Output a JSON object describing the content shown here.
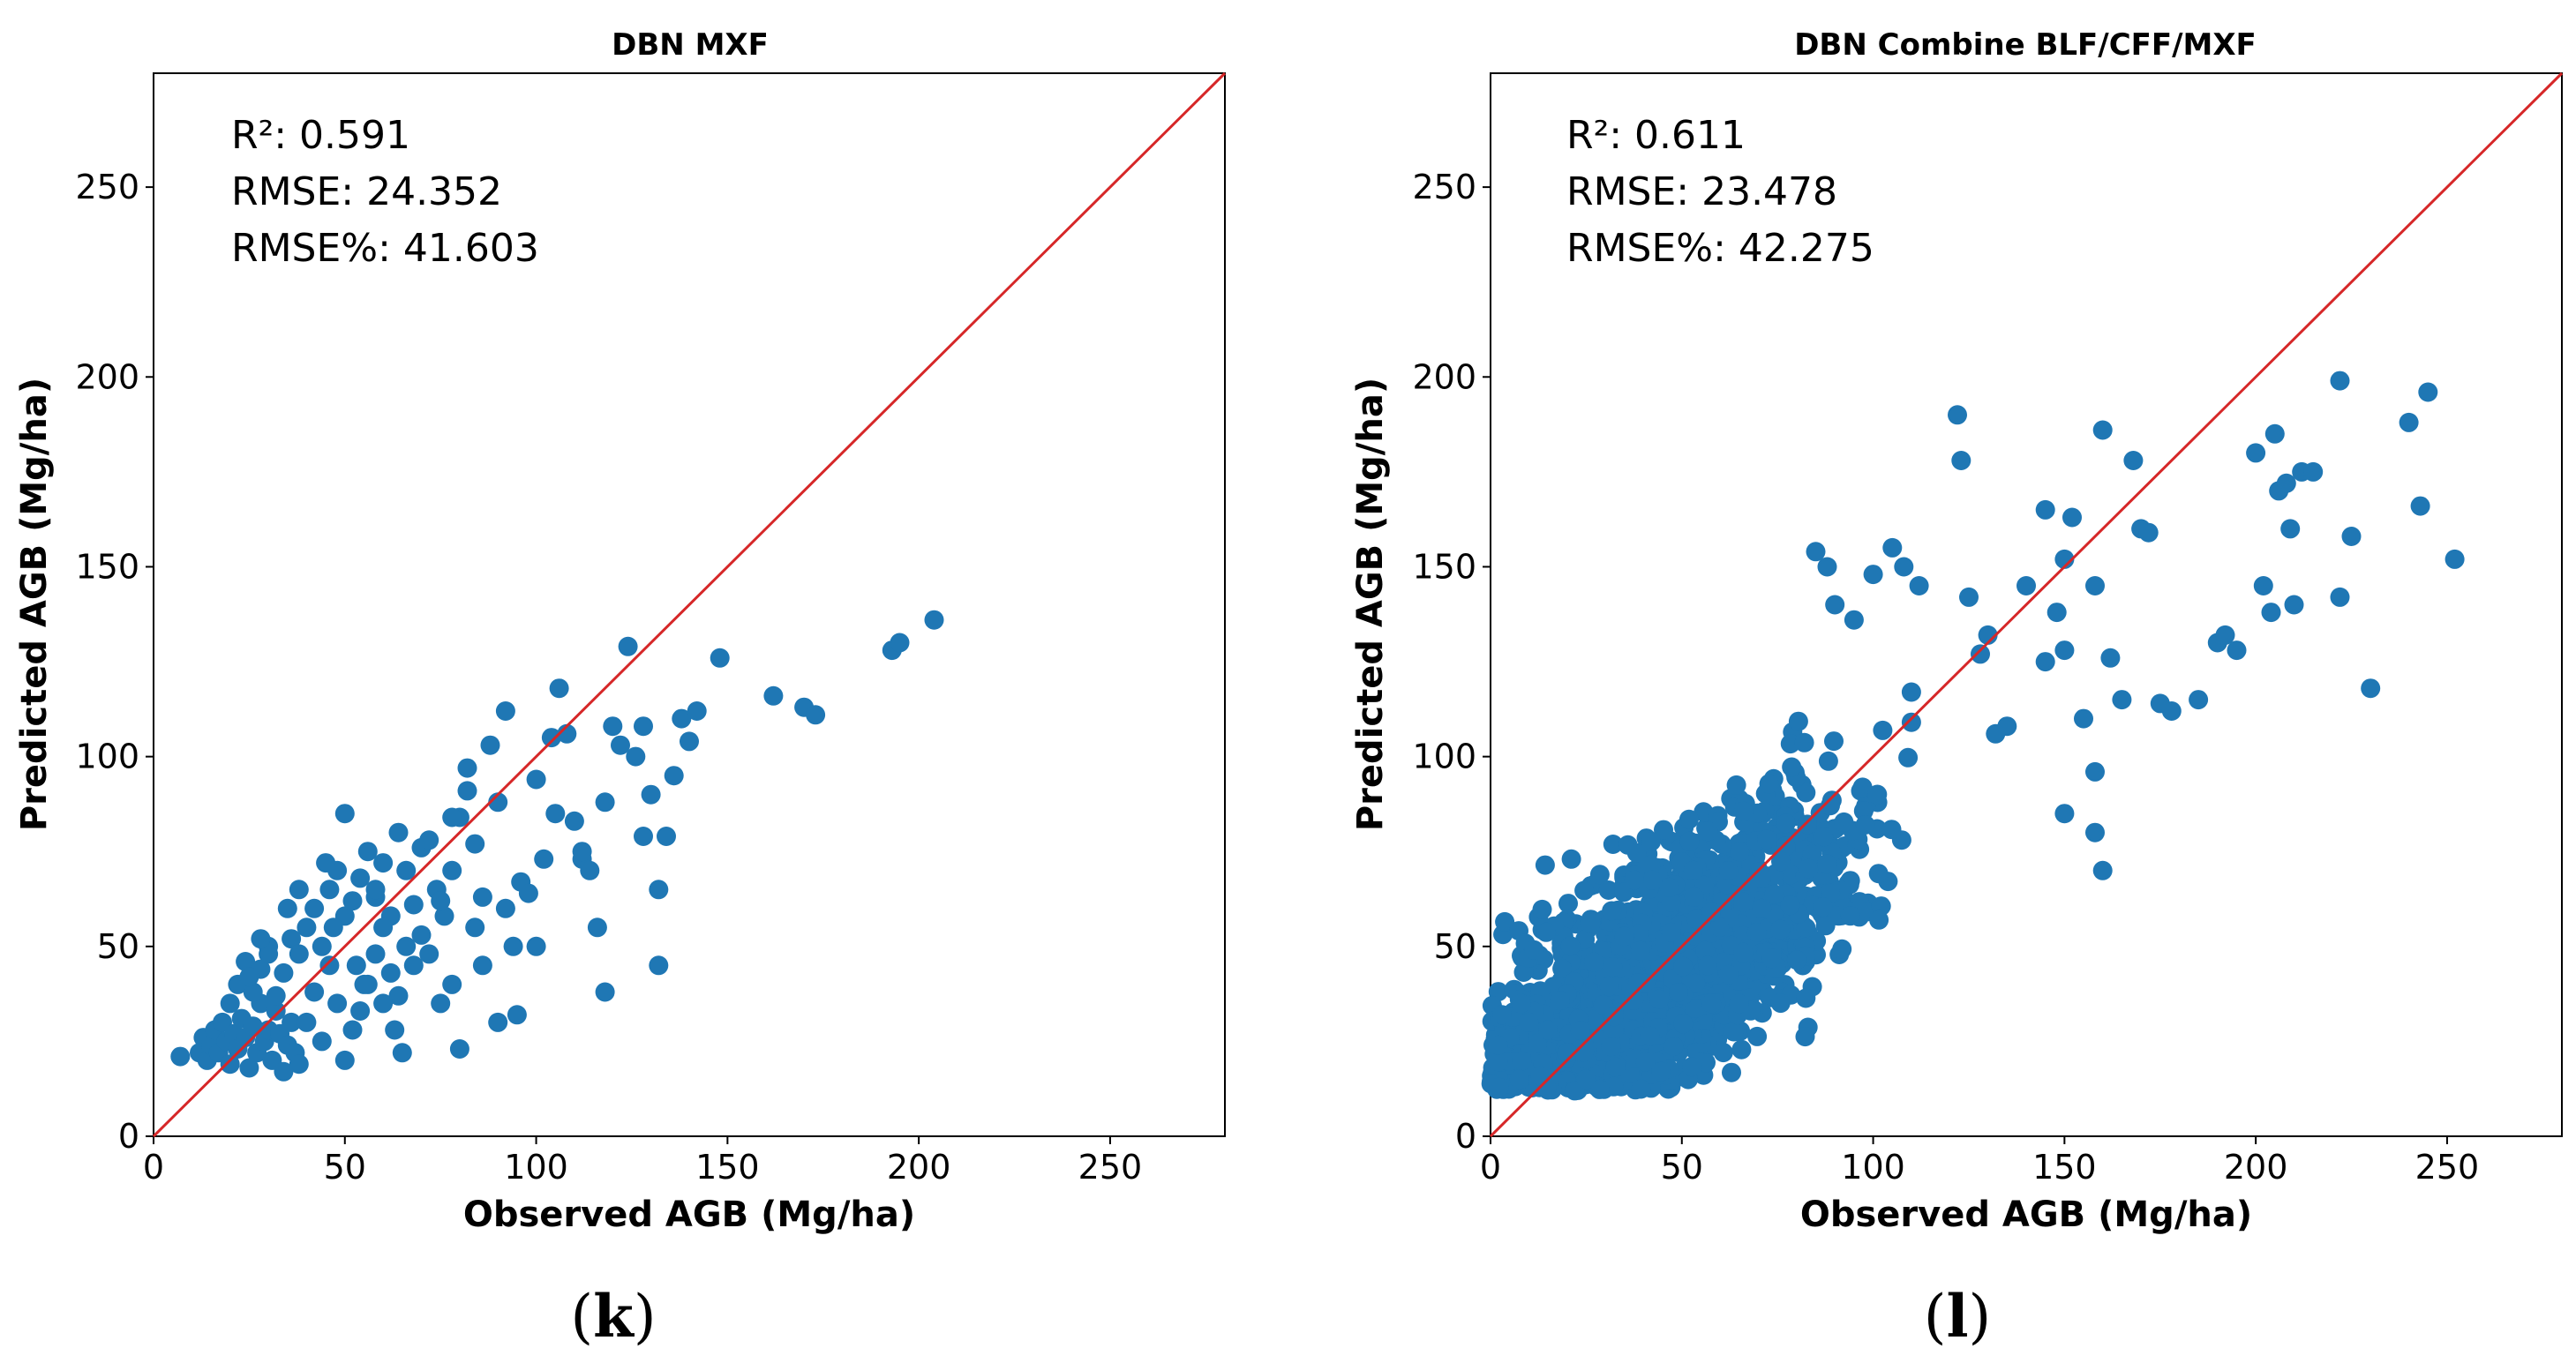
{
  "chart_data": [
    {
      "type": "scatter",
      "title": "DBN  MXF",
      "xlabel": "Observed AGB (Mg/ha)",
      "ylabel": "Predicted AGB (Mg/ha)",
      "xlim": [
        0,
        280
      ],
      "ylim": [
        0,
        280
      ],
      "xticks": [
        "0",
        "50",
        "100",
        "150",
        "200",
        "250"
      ],
      "yticks": [
        "0",
        "50",
        "100",
        "150",
        "200",
        "250"
      ],
      "stats": {
        "r2": "R²: 0.591",
        "rmse": "RMSE: 24.352",
        "rmse_pct": "RMSE%: 41.603"
      },
      "panel_label": "k",
      "reference_line": {
        "name": "1:1",
        "color": "#d62728"
      },
      "point_color": "#1f77b4",
      "points": [
        [
          7,
          21
        ],
        [
          12,
          22
        ],
        [
          13,
          26
        ],
        [
          14,
          20
        ],
        [
          15,
          24
        ],
        [
          16,
          28
        ],
        [
          17,
          22
        ],
        [
          18,
          30
        ],
        [
          19,
          25
        ],
        [
          20,
          19
        ],
        [
          21,
          27
        ],
        [
          22,
          23
        ],
        [
          23,
          31
        ],
        [
          24,
          26
        ],
        [
          25,
          18
        ],
        [
          26,
          29
        ],
        [
          27,
          22
        ],
        [
          28,
          35
        ],
        [
          29,
          25
        ],
        [
          30,
          28
        ],
        [
          31,
          20
        ],
        [
          32,
          33
        ],
        [
          33,
          27
        ],
        [
          34,
          17
        ],
        [
          35,
          24
        ],
        [
          36,
          30
        ],
        [
          37,
          22
        ],
        [
          38,
          19
        ],
        [
          20,
          35
        ],
        [
          22,
          40
        ],
        [
          24,
          46
        ],
        [
          26,
          38
        ],
        [
          28,
          44
        ],
        [
          30,
          50
        ],
        [
          32,
          37
        ],
        [
          34,
          43
        ],
        [
          36,
          52
        ],
        [
          38,
          48
        ],
        [
          40,
          55
        ],
        [
          42,
          60
        ],
        [
          44,
          50
        ],
        [
          46,
          65
        ],
        [
          48,
          70
        ],
        [
          50,
          58
        ],
        [
          52,
          62
        ],
        [
          54,
          68
        ],
        [
          56,
          75
        ],
        [
          58,
          63
        ],
        [
          60,
          72
        ],
        [
          62,
          58
        ],
        [
          64,
          80
        ],
        [
          66,
          70
        ],
        [
          68,
          61
        ],
        [
          70,
          76
        ],
        [
          40,
          30
        ],
        [
          42,
          38
        ],
        [
          44,
          25
        ],
        [
          46,
          45
        ],
        [
          48,
          35
        ],
        [
          50,
          20
        ],
        [
          52,
          28
        ],
        [
          54,
          33
        ],
        [
          56,
          40
        ],
        [
          58,
          48
        ],
        [
          60,
          55
        ],
        [
          62,
          43
        ],
        [
          64,
          37
        ],
        [
          66,
          50
        ],
        [
          68,
          45
        ],
        [
          70,
          53
        ],
        [
          72,
          48
        ],
        [
          74,
          65
        ],
        [
          76,
          58
        ],
        [
          78,
          70
        ],
        [
          80,
          84
        ],
        [
          82,
          97
        ],
        [
          84,
          77
        ],
        [
          86,
          63
        ],
        [
          88,
          103
        ],
        [
          90,
          88
        ],
        [
          92,
          112
        ],
        [
          94,
          50
        ],
        [
          96,
          67
        ],
        [
          98,
          64
        ],
        [
          100,
          94
        ],
        [
          102,
          73
        ],
        [
          104,
          105
        ],
        [
          106,
          118
        ],
        [
          108,
          106
        ],
        [
          110,
          83
        ],
        [
          112,
          73
        ],
        [
          114,
          70
        ],
        [
          116,
          55
        ],
        [
          118,
          38
        ],
        [
          120,
          108
        ],
        [
          122,
          103
        ],
        [
          124,
          129
        ],
        [
          126,
          100
        ],
        [
          128,
          108
        ],
        [
          130,
          90
        ],
        [
          132,
          65
        ],
        [
          134,
          79
        ],
        [
          136,
          95
        ],
        [
          138,
          110
        ],
        [
          140,
          104
        ],
        [
          142,
          112
        ],
        [
          148,
          126
        ],
        [
          162,
          116
        ],
        [
          170,
          113
        ],
        [
          173,
          111
        ],
        [
          193,
          128
        ],
        [
          195,
          130
        ],
        [
          204,
          136
        ],
        [
          75,
          35
        ],
        [
          78,
          40
        ],
        [
          80,
          23
        ],
        [
          84,
          55
        ],
        [
          86,
          45
        ],
        [
          90,
          30
        ],
        [
          92,
          60
        ],
        [
          95,
          32
        ],
        [
          100,
          50
        ],
        [
          105,
          85
        ],
        [
          112,
          75
        ],
        [
          118,
          88
        ],
        [
          128,
          79
        ],
        [
          132,
          45
        ],
        [
          35,
          60
        ],
        [
          38,
          65
        ],
        [
          30,
          48
        ],
        [
          25,
          42
        ],
        [
          28,
          52
        ],
        [
          45,
          72
        ],
        [
          47,
          55
        ],
        [
          50,
          85
        ],
        [
          53,
          45
        ],
        [
          55,
          40
        ],
        [
          60,
          35
        ],
        [
          65,
          22
        ],
        [
          63,
          28
        ],
        [
          58,
          65
        ],
        [
          72,
          78
        ],
        [
          75,
          62
        ],
        [
          78,
          84
        ],
        [
          82,
          91
        ]
      ]
    },
    {
      "type": "scatter",
      "title": "DBN  Combine BLF/CFF/MXF",
      "xlabel": "Observed AGB (Mg/ha)",
      "ylabel": "Predicted AGB (Mg/ha)",
      "xlim": [
        0,
        280
      ],
      "ylim": [
        0,
        280
      ],
      "xticks": [
        "0",
        "50",
        "100",
        "150",
        "200",
        "250"
      ],
      "yticks": [
        "0",
        "50",
        "100",
        "150",
        "200",
        "250"
      ],
      "stats": {
        "r2": "R²: 0.611",
        "rmse": "RMSE: 23.478",
        "rmse_pct": "RMSE%: 42.275"
      },
      "panel_label": "l",
      "reference_line": {
        "name": "1:1",
        "color": "#d62728"
      },
      "point_color": "#1f77b4",
      "dense_cloud": {
        "count": 1800,
        "x_mean": 45,
        "x_sd": 24,
        "slope": 0.62,
        "intercept": 16,
        "noise_sd": 15
      },
      "points": [
        [
          122,
          190
        ],
        [
          123,
          178
        ],
        [
          140,
          145
        ],
        [
          145,
          165
        ],
        [
          150,
          152
        ],
        [
          152,
          163
        ],
        [
          158,
          145
        ],
        [
          160,
          186
        ],
        [
          162,
          126
        ],
        [
          165,
          115
        ],
        [
          168,
          178
        ],
        [
          170,
          160
        ],
        [
          172,
          159
        ],
        [
          175,
          114
        ],
        [
          178,
          112
        ],
        [
          185,
          115
        ],
        [
          190,
          130
        ],
        [
          192,
          132
        ],
        [
          195,
          128
        ],
        [
          200,
          180
        ],
        [
          202,
          145
        ],
        [
          204,
          138
        ],
        [
          205,
          185
        ],
        [
          206,
          170
        ],
        [
          208,
          172
        ],
        [
          209,
          160
        ],
        [
          210,
          140
        ],
        [
          212,
          175
        ],
        [
          215,
          175
        ],
        [
          222,
          199
        ],
        [
          222,
          142
        ],
        [
          225,
          158
        ],
        [
          230,
          118
        ],
        [
          240,
          188
        ],
        [
          243,
          166
        ],
        [
          245,
          196
        ],
        [
          252,
          152
        ],
        [
          158,
          96
        ],
        [
          155,
          110
        ],
        [
          150,
          128
        ],
        [
          148,
          138
        ],
        [
          145,
          125
        ],
        [
          160,
          70
        ],
        [
          158,
          80
        ],
        [
          150,
          85
        ],
        [
          135,
          108
        ],
        [
          130,
          132
        ],
        [
          128,
          127
        ],
        [
          125,
          142
        ],
        [
          132,
          106
        ],
        [
          110,
          117
        ],
        [
          112,
          145
        ],
        [
          108,
          150
        ],
        [
          105,
          155
        ],
        [
          100,
          148
        ],
        [
          95,
          136
        ],
        [
          90,
          140
        ],
        [
          88,
          150
        ],
        [
          85,
          154
        ],
        [
          20,
          22
        ],
        [
          15,
          28
        ],
        [
          10,
          30
        ],
        [
          5,
          26
        ],
        [
          3,
          32
        ],
        [
          2,
          24
        ],
        [
          22,
          12
        ],
        [
          25,
          15
        ],
        [
          8,
          35
        ]
      ]
    }
  ]
}
